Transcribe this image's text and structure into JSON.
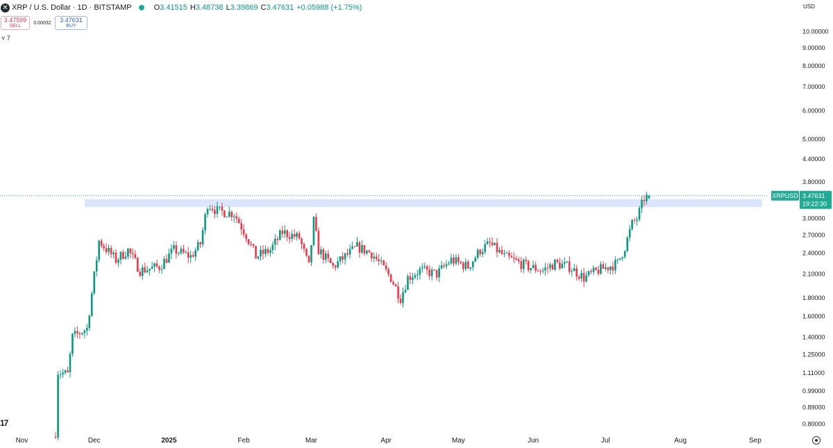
{
  "header": {
    "symbol_icon": "xrp-logo-icon",
    "title": "XRP / U.S. Dollar · 1D · BITSTAMP",
    "status_color": "#22ab94",
    "ohlc": [
      {
        "label": "O",
        "value": "3.41515"
      },
      {
        "label": "H",
        "value": "3.48738"
      },
      {
        "label": "L",
        "value": "3.39869"
      },
      {
        "label": "C",
        "value": "3.47631"
      },
      {
        "label": "",
        "value": "+0.05988 (+1.75%)"
      }
    ]
  },
  "trade": {
    "sell_price": "3.47599",
    "sell_label": "SELL",
    "spread": "0.00032",
    "buy_price": "3.47631",
    "buy_label": "BUY"
  },
  "indicators_toggle": "7",
  "currency_label": "USD",
  "logo_text": "17",
  "colors": {
    "up": "#089981",
    "down": "#f23645",
    "zone": "#dbe5fb",
    "badge": "#22ab94"
  },
  "chart_data": {
    "type": "candlestick",
    "symbol": "XRPUSD",
    "interval": "1D",
    "y_scale": "log",
    "y_range": [
      0.76,
      11.5
    ],
    "price_ticks": [
      "10.00000",
      "9.00000",
      "8.00000",
      "7.00000",
      "6.00000",
      "5.00000",
      "4.40000",
      "3.80000",
      "3.00000",
      "2.70000",
      "2.40000",
      "2.10000",
      "1.80000",
      "1.60000",
      "1.40000",
      "1.25000",
      "1.11000",
      "0.99000",
      "0.89000",
      "0.80000"
    ],
    "x_ticks": [
      "Nov",
      "Dec",
      "2025",
      "Feb",
      "Mar",
      "Apr",
      "May",
      "Jun",
      "Jul",
      "Aug",
      "Sep"
    ],
    "last_price": {
      "label": "XRPUSD",
      "value": "3.47631",
      "countdown": "19:22:30"
    },
    "resistance_zone": {
      "low": 3.23,
      "high": 3.4,
      "color": "#dbe5fb"
    },
    "segments": [
      {
        "date": "2024-11-15",
        "price": 0.76
      },
      {
        "date": "2024-11-16",
        "price": 1.12
      },
      {
        "date": "2024-11-20",
        "price": 1.1
      },
      {
        "date": "2024-11-22",
        "price": 1.4
      },
      {
        "date": "2024-11-28",
        "price": 1.48
      },
      {
        "date": "2024-12-03",
        "price": 2.6
      },
      {
        "date": "2024-12-10",
        "price": 2.3
      },
      {
        "date": "2024-12-15",
        "price": 2.45
      },
      {
        "date": "2024-12-20",
        "price": 2.15
      },
      {
        "date": "2024-12-28",
        "price": 2.2
      },
      {
        "date": "2025-01-03",
        "price": 2.45
      },
      {
        "date": "2025-01-10",
        "price": 2.35
      },
      {
        "date": "2025-01-14",
        "price": 2.55
      },
      {
        "date": "2025-01-17",
        "price": 3.3
      },
      {
        "date": "2025-01-21",
        "price": 3.15
      },
      {
        "date": "2025-01-28",
        "price": 3.1
      },
      {
        "date": "2025-02-02",
        "price": 2.7
      },
      {
        "date": "2025-02-06",
        "price": 2.35
      },
      {
        "date": "2025-02-12",
        "price": 2.45
      },
      {
        "date": "2025-02-17",
        "price": 2.75
      },
      {
        "date": "2025-02-24",
        "price": 2.65
      },
      {
        "date": "2025-02-28",
        "price": 2.2
      },
      {
        "date": "2025-03-02",
        "price": 2.95
      },
      {
        "date": "2025-03-04",
        "price": 2.45
      },
      {
        "date": "2025-03-10",
        "price": 2.2
      },
      {
        "date": "2025-03-15",
        "price": 2.35
      },
      {
        "date": "2025-03-20",
        "price": 2.5
      },
      {
        "date": "2025-03-26",
        "price": 2.4
      },
      {
        "date": "2025-04-03",
        "price": 2.05
      },
      {
        "date": "2025-04-07",
        "price": 1.8
      },
      {
        "date": "2025-04-10",
        "price": 2.05
      },
      {
        "date": "2025-04-15",
        "price": 2.15
      },
      {
        "date": "2025-04-22",
        "price": 2.1
      },
      {
        "date": "2025-04-28",
        "price": 2.3
      },
      {
        "date": "2025-05-05",
        "price": 2.2
      },
      {
        "date": "2025-05-10",
        "price": 2.45
      },
      {
        "date": "2025-05-14",
        "price": 2.55
      },
      {
        "date": "2025-05-20",
        "price": 2.35
      },
      {
        "date": "2025-05-30",
        "price": 2.2
      },
      {
        "date": "2025-06-05",
        "price": 2.15
      },
      {
        "date": "2025-06-10",
        "price": 2.25
      },
      {
        "date": "2025-06-16",
        "price": 2.2
      },
      {
        "date": "2025-06-22",
        "price": 2.05
      },
      {
        "date": "2025-06-28",
        "price": 2.15
      },
      {
        "date": "2025-07-06",
        "price": 2.25
      },
      {
        "date": "2025-07-09",
        "price": 2.5
      },
      {
        "date": "2025-07-12",
        "price": 2.9
      },
      {
        "date": "2025-07-14",
        "price": 3.0
      },
      {
        "date": "2025-07-17",
        "price": 3.42
      },
      {
        "date": "2025-07-19",
        "price": 3.47
      }
    ]
  }
}
